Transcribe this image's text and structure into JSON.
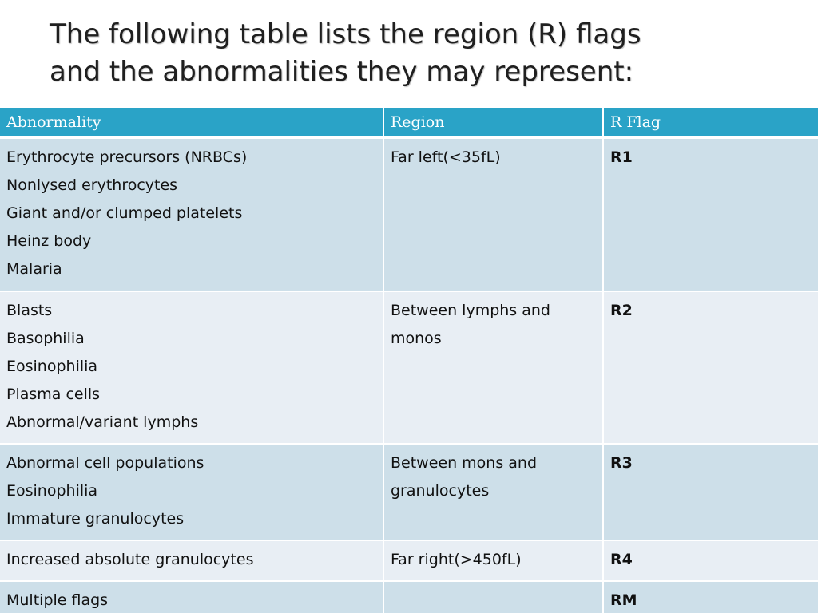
{
  "title": {
    "line1": "The following table lists the region (R) flags",
    "line2": "and the abnormalities they may represent:"
  },
  "table": {
    "headers": [
      "Abnormality",
      "Region",
      "R Flag"
    ],
    "rows": [
      {
        "abnormalities": [
          "Erythrocyte precursors (NRBCs)",
          "Nonlysed erythrocytes",
          "Giant and/or clumped platelets",
          "Heinz body",
          "Malaria"
        ],
        "region": "Far left(<35fL)",
        "flag": "R1"
      },
      {
        "abnormalities": [
          "Blasts",
          "Basophilia",
          "Eosinophilia",
          "Plasma cells",
          "Abnormal/variant lymphs"
        ],
        "region": "Between lymphs and monos",
        "flag": "R2"
      },
      {
        "abnormalities": [
          "Abnormal cell populations",
          "Eosinophilia",
          "Immature granulocytes"
        ],
        "region": "Between mons and granulocytes",
        "flag": "R3"
      },
      {
        "abnormalities": [
          "Increased absolute granulocytes"
        ],
        "region": "Far right(>450fL)",
        "flag": "R4"
      },
      {
        "abnormalities": [
          "Multiple flags"
        ],
        "region": "",
        "flag": "RM"
      }
    ]
  },
  "colors": {
    "header_bg": "#2aa3c7",
    "row_odd_bg": "#cddfe9",
    "row_even_bg": "#e8eef4",
    "title_text": "#1f1f1f"
  }
}
